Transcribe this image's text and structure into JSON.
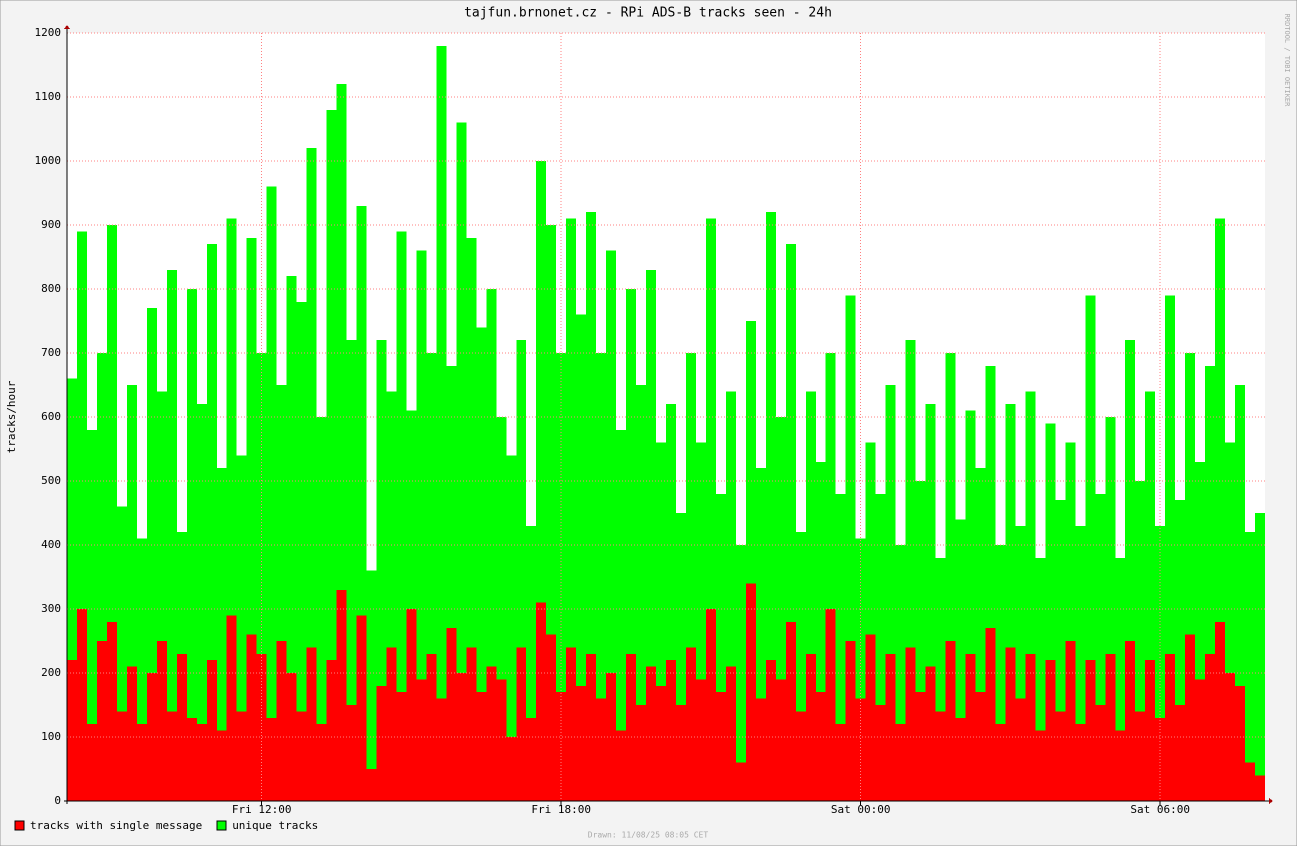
{
  "chart_data": {
    "type": "area-bars",
    "title": "tajfun.brnonet.cz - RPi ADS-B tracks seen - 24h",
    "ylabel": "tracks/hour",
    "watermark": "RRDTOOL / TOBI OETIKER",
    "footer": "Drawn: 11/08/25 08:05 CET",
    "xlim": [
      8.1,
      32.1
    ],
    "xticks": [
      {
        "value": 12,
        "label": "Fri 12:00"
      },
      {
        "value": 18,
        "label": "Fri 18:00"
      },
      {
        "value": 24,
        "label": "Sat 00:00"
      },
      {
        "value": 30,
        "label": "Sat 06:00"
      }
    ],
    "ylim": [
      0,
      1200
    ],
    "yticks": [
      0,
      100,
      200,
      300,
      400,
      500,
      600,
      700,
      800,
      900,
      1000,
      1100,
      1200
    ],
    "grid": true,
    "x": [
      8.1,
      8.3,
      8.5,
      8.7,
      8.9,
      9.1,
      9.3,
      9.5,
      9.7,
      9.9,
      10.1,
      10.3,
      10.5,
      10.7,
      10.9,
      11.1,
      11.3,
      11.5,
      11.7,
      11.9,
      12.1,
      12.3,
      12.5,
      12.7,
      12.9,
      13.1,
      13.3,
      13.5,
      13.7,
      13.9,
      14.1,
      14.3,
      14.5,
      14.7,
      14.9,
      15.1,
      15.3,
      15.5,
      15.7,
      15.9,
      16.1,
      16.3,
      16.5,
      16.7,
      16.9,
      17.1,
      17.3,
      17.5,
      17.7,
      17.9,
      18.1,
      18.3,
      18.5,
      18.7,
      18.9,
      19.1,
      19.3,
      19.5,
      19.7,
      19.9,
      20.1,
      20.3,
      20.5,
      20.7,
      20.9,
      21.1,
      21.3,
      21.5,
      21.7,
      21.9,
      22.1,
      22.3,
      22.5,
      22.7,
      22.9,
      23.1,
      23.3,
      23.5,
      23.7,
      23.9,
      24.1,
      24.3,
      24.5,
      24.7,
      24.9,
      25.1,
      25.3,
      25.5,
      25.7,
      25.9,
      26.1,
      26.3,
      26.5,
      26.7,
      26.9,
      27.1,
      27.3,
      27.5,
      27.7,
      27.9,
      28.1,
      28.3,
      28.5,
      28.7,
      28.9,
      29.1,
      29.3,
      29.5,
      29.7,
      29.9,
      30.1,
      30.3,
      30.5,
      30.7,
      30.9,
      31.1,
      31.3,
      31.5,
      31.7,
      31.9
    ],
    "series": [
      {
        "name": "tracks with single message",
        "color": "#ff0000",
        "values": [
          220,
          300,
          120,
          250,
          280,
          140,
          210,
          120,
          200,
          250,
          140,
          230,
          130,
          120,
          220,
          110,
          290,
          140,
          260,
          230,
          130,
          250,
          200,
          140,
          240,
          120,
          220,
          330,
          150,
          290,
          50,
          180,
          240,
          170,
          300,
          190,
          230,
          160,
          270,
          200,
          240,
          170,
          210,
          190,
          100,
          240,
          130,
          310,
          260,
          170,
          240,
          180,
          230,
          160,
          200,
          110,
          230,
          150,
          210,
          180,
          220,
          150,
          240,
          190,
          300,
          170,
          210,
          60,
          340,
          160,
          220,
          190,
          280,
          140,
          230,
          170,
          300,
          120,
          250,
          160,
          260,
          150,
          230,
          120,
          240,
          170,
          210,
          140,
          250,
          130,
          230,
          170,
          270,
          120,
          240,
          160,
          230,
          110,
          220,
          140,
          250,
          120,
          220,
          150,
          230,
          110,
          250,
          140,
          220,
          130,
          230,
          150,
          260,
          190,
          230,
          280,
          200,
          180,
          60,
          40
        ]
      },
      {
        "name": "unique tracks",
        "color": "#00ff00",
        "values": [
          660,
          890,
          580,
          700,
          900,
          460,
          650,
          410,
          770,
          640,
          830,
          420,
          800,
          620,
          870,
          520,
          910,
          540,
          880,
          700,
          960,
          650,
          820,
          780,
          1020,
          600,
          1080,
          1120,
          720,
          930,
          360,
          720,
          640,
          890,
          610,
          860,
          700,
          1180,
          680,
          1060,
          880,
          740,
          800,
          600,
          540,
          720,
          430,
          1000,
          900,
          700,
          910,
          760,
          920,
          700,
          860,
          580,
          800,
          650,
          830,
          560,
          620,
          450,
          700,
          560,
          910,
          480,
          640,
          400,
          750,
          520,
          920,
          600,
          870,
          420,
          640,
          530,
          700,
          480,
          790,
          410,
          560,
          480,
          650,
          400,
          720,
          500,
          620,
          380,
          700,
          440,
          610,
          520,
          680,
          400,
          620,
          430,
          640,
          380,
          590,
          470,
          560,
          430,
          790,
          480,
          600,
          380,
          720,
          500,
          640,
          430,
          790,
          470,
          700,
          530,
          680,
          910,
          560,
          650,
          420,
          450
        ]
      }
    ]
  }
}
